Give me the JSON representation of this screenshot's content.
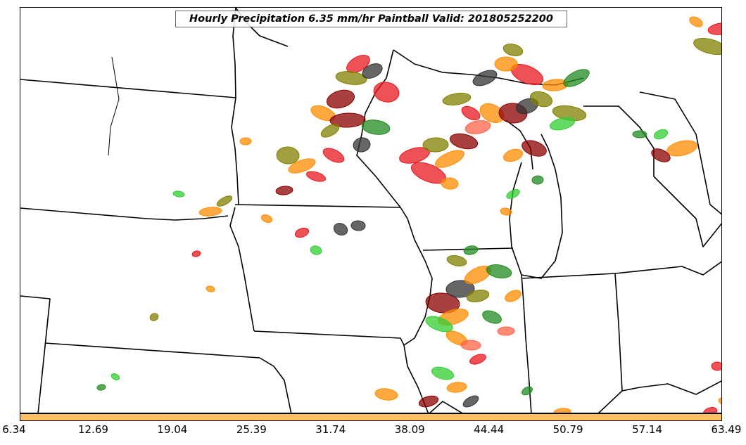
{
  "title": "Hourly Precipitation 6.35 mm/hr Paintball Valid: 201805252200",
  "colorbar": {
    "fill_color": "#ffc062",
    "tick_labels": [
      "6.34",
      "12.69",
      "19.04",
      "25.39",
      "31.74",
      "38.09",
      "44.44",
      "50.79",
      "57.14",
      "63.49"
    ]
  },
  "member_colors": [
    "#e8181f",
    "#ff8c00",
    "#8b0000",
    "#228b22",
    "#32cd32",
    "#808000",
    "#333333",
    "#ff6347"
  ],
  "map": {
    "land_color": "#ffffff",
    "boundary_color": "#000000"
  }
}
